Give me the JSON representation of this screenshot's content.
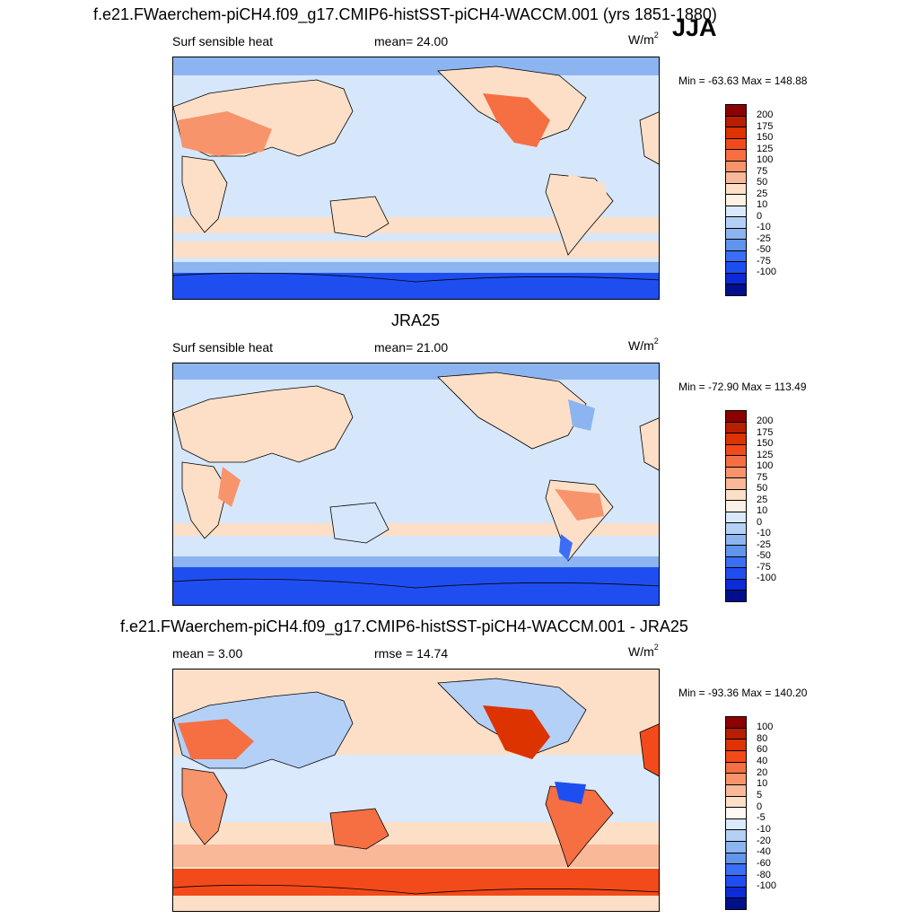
{
  "header": {
    "case_title": "f.e21.FWaerchem-piCH4.f09_g17.CMIP6-histSST-piCH4-WACCM.001 (yrs 1851-1880)",
    "season": "JJA"
  },
  "panels": [
    {
      "id": "model",
      "title": "",
      "left_label": "Surf sensible heat",
      "mid_label": "mean=  24.00",
      "units_base": "W/m",
      "units_exp": "2",
      "minmax": "Min = -63.63 Max = 148.88",
      "palette": "abs"
    },
    {
      "id": "obs",
      "title": "JRA25",
      "left_label": "Surf sensible heat",
      "mid_label": "mean=  21.00",
      "units_base": "W/m",
      "units_exp": "2",
      "minmax": "Min = -72.90 Max = 113.49",
      "palette": "abs"
    },
    {
      "id": "diff",
      "title": "f.e21.FWaerchem-piCH4.f09_g17.CMIP6-histSST-piCH4-WACCM.001 - JRA25",
      "left_label": "mean =   3.00",
      "mid_label": "rmse =  14.74",
      "units_base": "W/m",
      "units_exp": "2",
      "minmax": "Min = -93.36 Max = 140.20",
      "palette": "diff"
    }
  ],
  "colorbars": {
    "abs": {
      "labels": [
        "200",
        "175",
        "150",
        "125",
        "100",
        "75",
        "50",
        "25",
        "10",
        "0",
        "-10",
        "-25",
        "-50",
        "-75",
        "-100"
      ],
      "colors": [
        "#8b0000",
        "#b81e00",
        "#dc3300",
        "#f24a1a",
        "#f56f43",
        "#f7946c",
        "#f9b898",
        "#fddfc7",
        "#fdf0e4",
        "#d9e9fb",
        "#b4d0f7",
        "#8cb4f0",
        "#6294ec",
        "#3b6ef5",
        "#1f4ef0",
        "#0b2bd6",
        "#00108c"
      ]
    },
    "diff": {
      "labels": [
        "100",
        "80",
        "60",
        "40",
        "20",
        "10",
        "5",
        "0",
        "-5",
        "-10",
        "-20",
        "-40",
        "-60",
        "-80",
        "-100"
      ],
      "colors": [
        "#8b0000",
        "#b81e00",
        "#dc3300",
        "#f24a1a",
        "#f56f43",
        "#f7946c",
        "#f9b898",
        "#fddfc7",
        "#fff8f0",
        "#dae9fb",
        "#b4d0f7",
        "#8cb4f0",
        "#6294ec",
        "#3b6ef5",
        "#1f4ef0",
        "#0b2bd6",
        "#00108c"
      ]
    }
  }
}
